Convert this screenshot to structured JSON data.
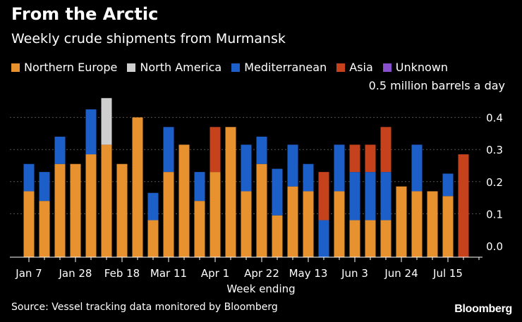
{
  "title": "From the Arctic",
  "subtitle": "Weekly crude shipments from Murmansk",
  "unit_label": "0.5 million barrels a day",
  "source": "Source: Vessel tracking data monitored by Bloomberg",
  "brand": "Bloomberg",
  "colors": {
    "Northern Europe": "#e8922f",
    "North America": "#cfcfcf",
    "Mediterranean": "#1d5fc9",
    "Asia": "#c5421d",
    "Unknown": "#8a4fcf"
  },
  "legend": [
    "Northern Europe",
    "North America",
    "Mediterranean",
    "Asia",
    "Unknown"
  ],
  "chart_data": {
    "type": "bar",
    "stacked": true,
    "xlabel": "Week ending",
    "ylabel": "",
    "ylim": [
      0,
      0.45
    ],
    "yticks": [
      0.0,
      0.1,
      0.2,
      0.3,
      0.4
    ],
    "y_axis_side": "right",
    "grid": true,
    "legend_position": "top-left",
    "x_tick_labels": [
      "Jan 7",
      "Jan 28",
      "Feb 18",
      "Mar 11",
      "Apr 1",
      "Apr 22",
      "May 13",
      "Jun 3",
      "Jun 24",
      "Jul 15"
    ],
    "x_tick_every": 3,
    "weeks": 30,
    "series": [
      {
        "name": "Northern Europe",
        "values": [
          0.17,
          0.14,
          0.255,
          0.255,
          0.285,
          0.315,
          0.255,
          0.4,
          0.08,
          0.23,
          0.315,
          0.14,
          0.23,
          0.37,
          0.17,
          0.255,
          0.095,
          0.185,
          0.17,
          0.0,
          0.17,
          0.08,
          0.08,
          0.08,
          0.185,
          0.17,
          0.17,
          0.155,
          0.0,
          0.0
        ]
      },
      {
        "name": "North America",
        "values": [
          0,
          0,
          0,
          0,
          0,
          0.145,
          0,
          0,
          0,
          0,
          0,
          0,
          0,
          0,
          0,
          0,
          0,
          0,
          0,
          0,
          0,
          0,
          0,
          0,
          0,
          0,
          0,
          0,
          0,
          0
        ]
      },
      {
        "name": "Mediterranean",
        "values": [
          0.085,
          0.09,
          0.085,
          0.0,
          0.14,
          0.0,
          0.0,
          0.0,
          0.085,
          0.14,
          0.0,
          0.09,
          0.0,
          0.0,
          0.145,
          0.085,
          0.145,
          0.13,
          0.085,
          0.08,
          0.145,
          0.15,
          0.15,
          0.15,
          0.0,
          0.145,
          0.0,
          0.07,
          0.0,
          0.0
        ]
      },
      {
        "name": "Asia",
        "values": [
          0,
          0,
          0,
          0,
          0,
          0,
          0,
          0,
          0,
          0,
          0,
          0,
          0.14,
          0,
          0,
          0,
          0,
          0,
          0,
          0.15,
          0,
          0.085,
          0.085,
          0.14,
          0,
          0,
          0,
          0,
          0.285,
          0
        ]
      },
      {
        "name": "Unknown",
        "values": [
          0,
          0,
          0,
          0,
          0,
          0,
          0,
          0,
          0,
          0,
          0,
          0,
          0,
          0,
          0,
          0,
          0,
          0,
          0,
          0,
          0,
          0,
          0,
          0,
          0,
          0,
          0,
          0,
          0,
          0
        ]
      }
    ]
  }
}
